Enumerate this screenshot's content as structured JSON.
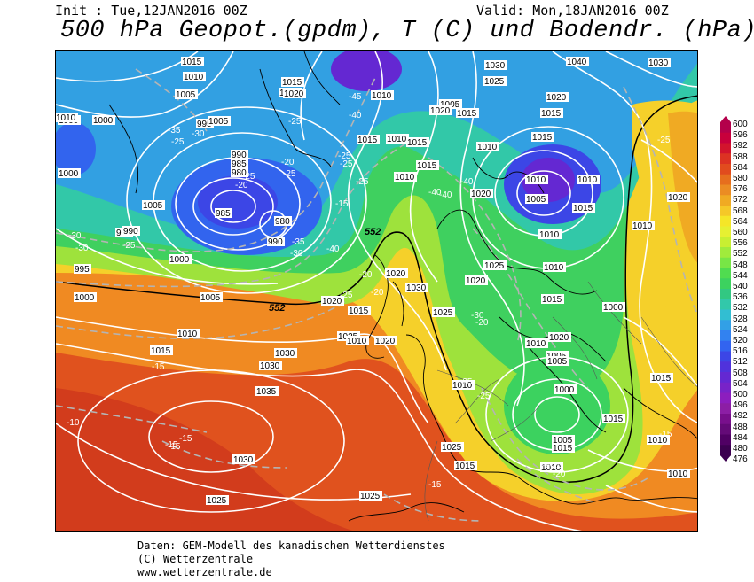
{
  "header": {
    "init": "Init : Tue,12JAN2016 00Z",
    "valid": "Valid: Mon,18JAN2016 00Z",
    "title": "500 hPa Geopot.(gpdm), T (C) und Bodendr. (hPa)"
  },
  "legend": {
    "values": [
      "600",
      "596",
      "592",
      "588",
      "584",
      "580",
      "576",
      "572",
      "568",
      "564",
      "560",
      "556",
      "552",
      "548",
      "544",
      "540",
      "536",
      "532",
      "528",
      "524",
      "520",
      "516",
      "512",
      "508",
      "504",
      "500",
      "496",
      "492",
      "488",
      "484",
      "480",
      "476"
    ],
    "colors": [
      "#b4004b",
      "#c8003c",
      "#d2142d",
      "#dc3223",
      "#e14b1e",
      "#e66e1e",
      "#eb8c23",
      "#f0aa23",
      "#f5c828",
      "#f5e628",
      "#e6f032",
      "#c8ef32",
      "#a0eb3c",
      "#78e646",
      "#50dc50",
      "#3cd25f",
      "#32c882",
      "#32c8aa",
      "#32bed2",
      "#32a0e6",
      "#3282f0",
      "#3264f0",
      "#3c46e6",
      "#5032dc",
      "#6428d2",
      "#7823c8",
      "#8c1ebe",
      "#8c1ea5",
      "#780f8c",
      "#640a78",
      "#500064",
      "#3c0050"
    ]
  },
  "pressure_labels": [
    "1010",
    "1005",
    "1000",
    "995",
    "990",
    "985",
    "980",
    "1015",
    "1020",
    "1025",
    "1030",
    "1035",
    "1040"
  ],
  "map_labels": {
    "isobars": [
      {
        "v": "1015"
      },
      {
        "v": "1010"
      },
      {
        "v": "1005"
      },
      {
        "v": "1000"
      },
      {
        "v": "995"
      },
      {
        "v": "1005"
      },
      {
        "v": "990"
      },
      {
        "v": "985"
      },
      {
        "v": "980"
      },
      {
        "v": "985"
      },
      {
        "v": "980"
      },
      {
        "v": "990"
      },
      {
        "v": "1000"
      },
      {
        "v": "1005"
      },
      {
        "v": "1010"
      },
      {
        "v": "1000"
      },
      {
        "v": "995"
      },
      {
        "v": "990"
      },
      {
        "v": "1000"
      },
      {
        "v": "995"
      },
      {
        "v": "1000"
      },
      {
        "v": "1005"
      },
      {
        "v": "1010"
      },
      {
        "v": "1015"
      },
      {
        "v": "1030"
      },
      {
        "v": "1035"
      },
      {
        "v": "1030"
      },
      {
        "v": "1025"
      },
      {
        "v": "1025"
      },
      {
        "v": "1020"
      },
      {
        "v": "1025"
      },
      {
        "v": "1030"
      },
      {
        "v": "1015"
      },
      {
        "v": "1020"
      },
      {
        "v": "1025"
      },
      {
        "v": "1030"
      },
      {
        "v": "1010"
      },
      {
        "v": "1020"
      },
      {
        "v": "1015"
      },
      {
        "v": "1005"
      },
      {
        "v": "1010"
      },
      {
        "v": "1015"
      },
      {
        "v": "1020"
      },
      {
        "v": "1015"
      },
      {
        "v": "1020"
      },
      {
        "v": "1010"
      },
      {
        "v": "1015"
      },
      {
        "v": "1020"
      },
      {
        "v": "1010"
      },
      {
        "v": "1015"
      },
      {
        "v": "1020"
      },
      {
        "v": "1030"
      },
      {
        "v": "1025"
      },
      {
        "v": "1020"
      },
      {
        "v": "1015"
      },
      {
        "v": "1010"
      },
      {
        "v": "1010"
      },
      {
        "v": "1005"
      },
      {
        "v": "1010"
      },
      {
        "v": "1015"
      },
      {
        "v": "1010"
      },
      {
        "v": "1015"
      },
      {
        "v": "1020"
      },
      {
        "v": "1025"
      },
      {
        "v": "1010"
      },
      {
        "v": "1015"
      },
      {
        "v": "1020"
      },
      {
        "v": "1000"
      },
      {
        "v": "1005"
      },
      {
        "v": "1015"
      },
      {
        "v": "1010"
      },
      {
        "v": "1005"
      },
      {
        "v": "1000"
      },
      {
        "v": "1005"
      },
      {
        "v": "1015"
      },
      {
        "v": "1010"
      },
      {
        "v": "1040"
      },
      {
        "v": "1030"
      },
      {
        "v": "1020"
      },
      {
        "v": "1010"
      },
      {
        "v": "1015"
      },
      {
        "v": "1010"
      },
      {
        "v": "1010"
      },
      {
        "v": "1025"
      },
      {
        "v": "1015"
      },
      {
        "v": "1010"
      }
    ],
    "temperatures": [
      {
        "v": "-30"
      },
      {
        "v": "-30"
      },
      {
        "v": "-25"
      },
      {
        "v": "-25"
      },
      {
        "v": "-35"
      },
      {
        "v": "-30"
      },
      {
        "v": "-25"
      },
      {
        "v": "-25"
      },
      {
        "v": "-20"
      },
      {
        "v": "-45"
      },
      {
        "v": "-40"
      },
      {
        "v": "-25"
      },
      {
        "v": "-25"
      },
      {
        "v": "-20"
      },
      {
        "v": "-25"
      },
      {
        "v": "-15"
      },
      {
        "v": "-25"
      },
      {
        "v": "-30"
      },
      {
        "v": "-35"
      },
      {
        "v": "-40"
      },
      {
        "v": "-40"
      },
      {
        "v": "-40"
      },
      {
        "v": "-40"
      },
      {
        "v": "-25"
      },
      {
        "v": "-20"
      },
      {
        "v": "-20"
      },
      {
        "v": "-25"
      },
      {
        "v": "-30"
      },
      {
        "v": "-20"
      },
      {
        "v": "-15"
      },
      {
        "v": "-15"
      },
      {
        "v": "-15"
      },
      {
        "v": "-10"
      },
      {
        "v": "-15"
      },
      {
        "v": "-15"
      },
      {
        "v": "-25"
      },
      {
        "v": "-20"
      },
      {
        "v": "-15"
      },
      {
        "v": "-20"
      },
      {
        "v": "-15"
      },
      {
        "v": "-25"
      }
    ],
    "geopotential": [
      {
        "v": "552"
      },
      {
        "v": "552"
      }
    ]
  },
  "footer": {
    "line1": "Daten: GEM-Modell des kanadischen Wetterdienstes",
    "line2": "(C) Wetterzentrale",
    "line3": "www.wetterzentrale.de"
  }
}
